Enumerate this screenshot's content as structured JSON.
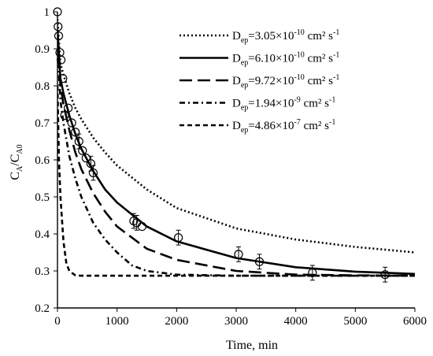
{
  "chart_data": {
    "type": "line",
    "xlabel": "Time, min",
    "ylabel": {
      "main": "C",
      "sub1": "A",
      "slash": "/C",
      "sub2": "A0"
    },
    "xlim": [
      0,
      6000
    ],
    "ylim": [
      0.2,
      1
    ],
    "xticks": [
      0,
      1000,
      2000,
      3000,
      4000,
      5000,
      6000
    ],
    "yticks": [
      0.2,
      0.3,
      0.4,
      0.5,
      0.6,
      0.7,
      0.8,
      0.9,
      1
    ],
    "grid": false,
    "legend_position": "top-right",
    "series": [
      {
        "name": "D_ep=3.05×10^-10 cm² s^-1",
        "label": {
          "base": "D",
          "sub": "ep",
          "value": "=3.05×10",
          "exp": "-10",
          "unit": " cm² s",
          "unit_exp": "-1"
        },
        "style": "dotted",
        "x": [
          0,
          50,
          100,
          200,
          300,
          400,
          600,
          800,
          1000,
          1500,
          2000,
          3000,
          4000,
          5000,
          6000
        ],
        "y": [
          0.98,
          0.86,
          0.83,
          0.78,
          0.74,
          0.71,
          0.66,
          0.62,
          0.585,
          0.52,
          0.47,
          0.415,
          0.385,
          0.365,
          0.35
        ]
      },
      {
        "name": "D_ep=6.10×10^-10 cm² s^-1",
        "label": {
          "base": "D",
          "sub": "ep",
          "value": "=6.10×10",
          "exp": "-10",
          "unit": " cm² s",
          "unit_exp": "-1"
        },
        "style": "solid",
        "x": [
          0,
          50,
          100,
          200,
          300,
          400,
          600,
          800,
          1000,
          1500,
          2000,
          3000,
          4000,
          5000,
          6000
        ],
        "y": [
          0.95,
          0.82,
          0.78,
          0.72,
          0.67,
          0.63,
          0.57,
          0.52,
          0.485,
          0.42,
          0.38,
          0.335,
          0.31,
          0.298,
          0.292
        ]
      },
      {
        "name": "D_ep=9.72×10^-10 cm² s^-1",
        "label": {
          "base": "D",
          "sub": "ep",
          "value": "=9.72×10",
          "exp": "-10",
          "unit": " cm² s",
          "unit_exp": "-1"
        },
        "style": "long-dash",
        "x": [
          0,
          50,
          100,
          200,
          300,
          400,
          600,
          800,
          1000,
          1500,
          2000,
          3000,
          4000,
          5000,
          6000
        ],
        "y": [
          0.93,
          0.8,
          0.75,
          0.68,
          0.62,
          0.575,
          0.51,
          0.46,
          0.42,
          0.36,
          0.33,
          0.3,
          0.29,
          0.288,
          0.287
        ]
      },
      {
        "name": "D_ep=1.94×10^-9 cm² s^-1",
        "label": {
          "base": "D",
          "sub": "ep",
          "value": "=1.94×10",
          "exp": "-9",
          "unit": " cm² s",
          "unit_exp": "-1"
        },
        "style": "dash-dot",
        "x": [
          0,
          50,
          100,
          200,
          300,
          400,
          600,
          800,
          1000,
          1250,
          1500,
          2000,
          3000,
          4000,
          5000,
          6000
        ],
        "y": [
          0.9,
          0.76,
          0.7,
          0.61,
          0.55,
          0.5,
          0.43,
          0.385,
          0.35,
          0.315,
          0.3,
          0.29,
          0.287,
          0.287,
          0.287,
          0.287
        ]
      },
      {
        "name": "D_ep=4.86×10^-7 cm² s^-1",
        "label": {
          "base": "D",
          "sub": "ep",
          "value": "=4.86×10",
          "exp": "-7",
          "unit": " cm² s",
          "unit_exp": "-1"
        },
        "style": "short-dash",
        "x": [
          0,
          25,
          50,
          100,
          150,
          200,
          300,
          400,
          600,
          1000,
          2000,
          3000,
          4000,
          5000,
          6000
        ],
        "y": [
          0.8,
          0.6,
          0.5,
          0.38,
          0.32,
          0.3,
          0.288,
          0.287,
          0.287,
          0.287,
          0.287,
          0.287,
          0.287,
          0.287,
          0.287
        ]
      }
    ],
    "experimental": {
      "x": [
        0,
        10,
        20,
        40,
        60,
        90,
        120,
        180,
        240,
        300,
        360,
        420,
        480,
        560,
        600,
        1280,
        1330,
        1420,
        2030,
        3040,
        3390,
        4280,
        5500
      ],
      "y": [
        1.0,
        0.96,
        0.935,
        0.89,
        0.87,
        0.82,
        0.72,
        0.74,
        0.7,
        0.675,
        0.65,
        0.625,
        0.605,
        0.59,
        0.565,
        0.435,
        0.43,
        0.42,
        0.39,
        0.345,
        0.325,
        0.295,
        0.29
      ],
      "err": [
        0,
        0,
        0,
        0,
        0,
        0,
        0,
        0,
        0,
        0,
        0.02,
        0,
        0,
        0.02,
        0.02,
        0.02,
        0.02,
        0,
        0.02,
        0.02,
        0.02,
        0.02,
        0.02
      ]
    }
  }
}
